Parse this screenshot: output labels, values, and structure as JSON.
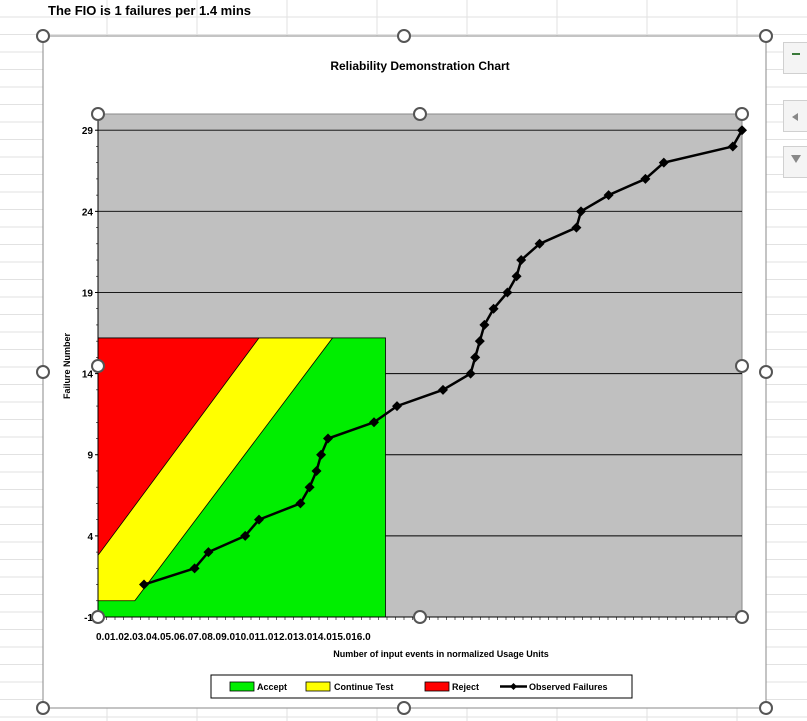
{
  "sheet": {
    "info_text": "The FIO is 1 failures per 1.4 mins"
  },
  "side_buttons": [
    {
      "icon": "chart-elements-plus-icon"
    },
    {
      "icon": "chart-styles-brush-icon"
    },
    {
      "icon": "chart-filter-funnel-icon"
    }
  ],
  "chart_data": {
    "type": "line",
    "title": "Reliability Demonstration Chart",
    "xlabel": "Number of input events in normalized Usage Units",
    "ylabel": "Failure Number",
    "xlim": [
      0.0,
      14.0
    ],
    "ylim": [
      -1,
      30
    ],
    "y_ticks": [
      "-1",
      "4",
      "9",
      "14",
      "19",
      "24",
      "29"
    ],
    "x_tick_text": "0.01.02.03.04.05.06.07.08.09.010.011.012.013.014.015.016.0",
    "grid": "horizontal",
    "plot_background": "#c0c0c0",
    "regions": [
      {
        "name": "Reject",
        "color": "#ff0000",
        "boundary": [
          [
            0.0,
            2.8
          ],
          [
            3.5,
            16.2
          ]
        ]
      },
      {
        "name": "Continue Test",
        "color": "#ffff00",
        "boundary": [
          [
            0.0,
            0.0
          ],
          [
            0.8,
            0.0
          ],
          [
            5.1,
            16.2
          ]
        ]
      },
      {
        "name": "Accept",
        "color": "#00ee00",
        "x_end": 6.25,
        "y_top": 16.2
      }
    ],
    "series": [
      {
        "name": "Observed Failures",
        "color": "#000000",
        "x": [
          1.0,
          2.1,
          2.4,
          3.2,
          3.5,
          4.4,
          4.6,
          4.75,
          4.85,
          5.0,
          6.0,
          6.5,
          7.5,
          8.1,
          8.2,
          8.3,
          8.4,
          8.6,
          8.9,
          9.1,
          9.2,
          9.6,
          10.4,
          10.5,
          11.1,
          11.9,
          12.3,
          13.8,
          14.0
        ],
        "y": [
          1,
          2,
          3,
          4,
          5,
          6,
          7,
          8,
          9,
          10,
          11,
          12,
          13,
          14,
          15,
          16,
          17,
          18,
          19,
          20,
          21,
          22,
          23,
          24,
          25,
          26,
          27,
          28,
          29
        ]
      }
    ],
    "legend": {
      "position": "bottom",
      "items": [
        {
          "label": "Accept",
          "color": "#00ee00",
          "kind": "box"
        },
        {
          "label": "Continue Test",
          "color": "#ffff00",
          "kind": "box"
        },
        {
          "label": "Reject",
          "color": "#ff0000",
          "kind": "box"
        },
        {
          "label": "Observed Failures",
          "color": "#000000",
          "kind": "line"
        }
      ]
    }
  }
}
